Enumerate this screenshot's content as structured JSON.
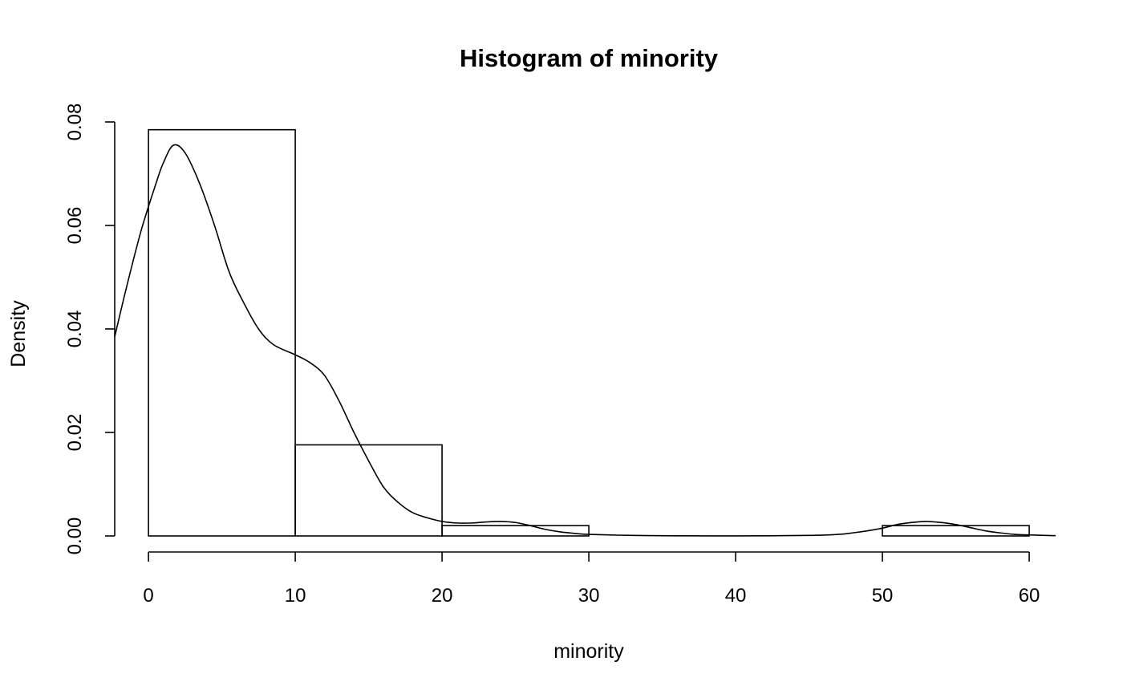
{
  "chart_data": {
    "type": "bar",
    "title": "Histogram of minority",
    "xlabel": "minority",
    "ylabel": "Density",
    "bins": [
      {
        "x0": 0,
        "x1": 10,
        "density": 0.0785
      },
      {
        "x0": 10,
        "x1": 20,
        "density": 0.0176
      },
      {
        "x0": 20,
        "x1": 30,
        "density": 0.002
      },
      {
        "x0": 30,
        "x1": 40,
        "density": 0
      },
      {
        "x0": 40,
        "x1": 50,
        "density": 0
      },
      {
        "x0": 50,
        "x1": 60,
        "density": 0.002
      }
    ],
    "xlim": [
      -2.3,
      61.8
    ],
    "ylim": [
      0,
      0.08
    ],
    "x_axis_range": [
      0,
      60
    ],
    "xticks": [
      "0",
      "10",
      "20",
      "30",
      "40",
      "50",
      "60"
    ],
    "yticks": [
      "0.00",
      "0.02",
      "0.04",
      "0.06",
      "0.08"
    ],
    "density_curve": [
      [
        -2.3,
        0.0385
      ],
      [
        -1.5,
        0.048
      ],
      [
        -0.5,
        0.059
      ],
      [
        0.5,
        0.068
      ],
      [
        1,
        0.072
      ],
      [
        1.7,
        0.0755
      ],
      [
        2.5,
        0.074
      ],
      [
        3.5,
        0.068
      ],
      [
        4.5,
        0.06
      ],
      [
        5.5,
        0.051
      ],
      [
        6.5,
        0.045
      ],
      [
        7.5,
        0.04
      ],
      [
        8.5,
        0.037
      ],
      [
        10,
        0.035
      ],
      [
        11,
        0.0335
      ],
      [
        12,
        0.031
      ],
      [
        13,
        0.026
      ],
      [
        14,
        0.02
      ],
      [
        15,
        0.0145
      ],
      [
        16,
        0.0095
      ],
      [
        17,
        0.0065
      ],
      [
        18,
        0.0045
      ],
      [
        19,
        0.0035
      ],
      [
        20,
        0.0028
      ],
      [
        21,
        0.0025
      ],
      [
        22,
        0.0025
      ],
      [
        23,
        0.0027
      ],
      [
        24,
        0.0028
      ],
      [
        25,
        0.0026
      ],
      [
        26,
        0.002
      ],
      [
        27,
        0.0013
      ],
      [
        28,
        0.0008
      ],
      [
        29,
        0.0005
      ],
      [
        30,
        0.0003
      ],
      [
        33,
        0.0001
      ],
      [
        36,
        3e-05
      ],
      [
        40,
        1e-05
      ],
      [
        45,
        0.0001
      ],
      [
        47,
        0.0003
      ],
      [
        48,
        0.0006
      ],
      [
        49,
        0.001
      ],
      [
        50,
        0.0015
      ],
      [
        51,
        0.0022
      ],
      [
        52,
        0.0026
      ],
      [
        53,
        0.0028
      ],
      [
        54,
        0.0026
      ],
      [
        55,
        0.0022
      ],
      [
        56,
        0.0016
      ],
      [
        57,
        0.001
      ],
      [
        58,
        0.0006
      ],
      [
        59,
        0.0003
      ],
      [
        60,
        0.0002
      ],
      [
        61.8,
        5e-05
      ]
    ],
    "grid": false,
    "legend": "none"
  }
}
